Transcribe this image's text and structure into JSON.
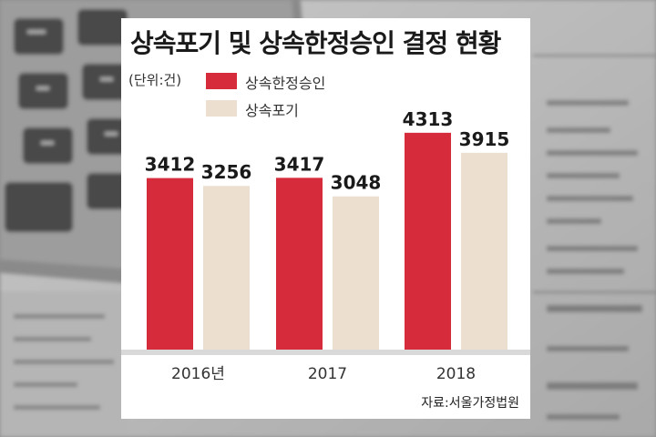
{
  "chart_data": {
    "type": "bar",
    "title": "상속포기 및 상속한정승인 결정 현황",
    "unit_label": "(단위:건)",
    "categories": [
      "2016년",
      "2017",
      "2018"
    ],
    "series": [
      {
        "name": "상속한정승인",
        "values": [
          3412,
          3417,
          4313
        ],
        "color": "#d62b3b"
      },
      {
        "name": "상속포기",
        "values": [
          3256,
          3048,
          3915
        ],
        "color": "#ecdfd0"
      }
    ],
    "ylim": [
      0,
      4600
    ],
    "grid": false,
    "legend_position": "top-left"
  },
  "source": "자료:서울가정법원"
}
